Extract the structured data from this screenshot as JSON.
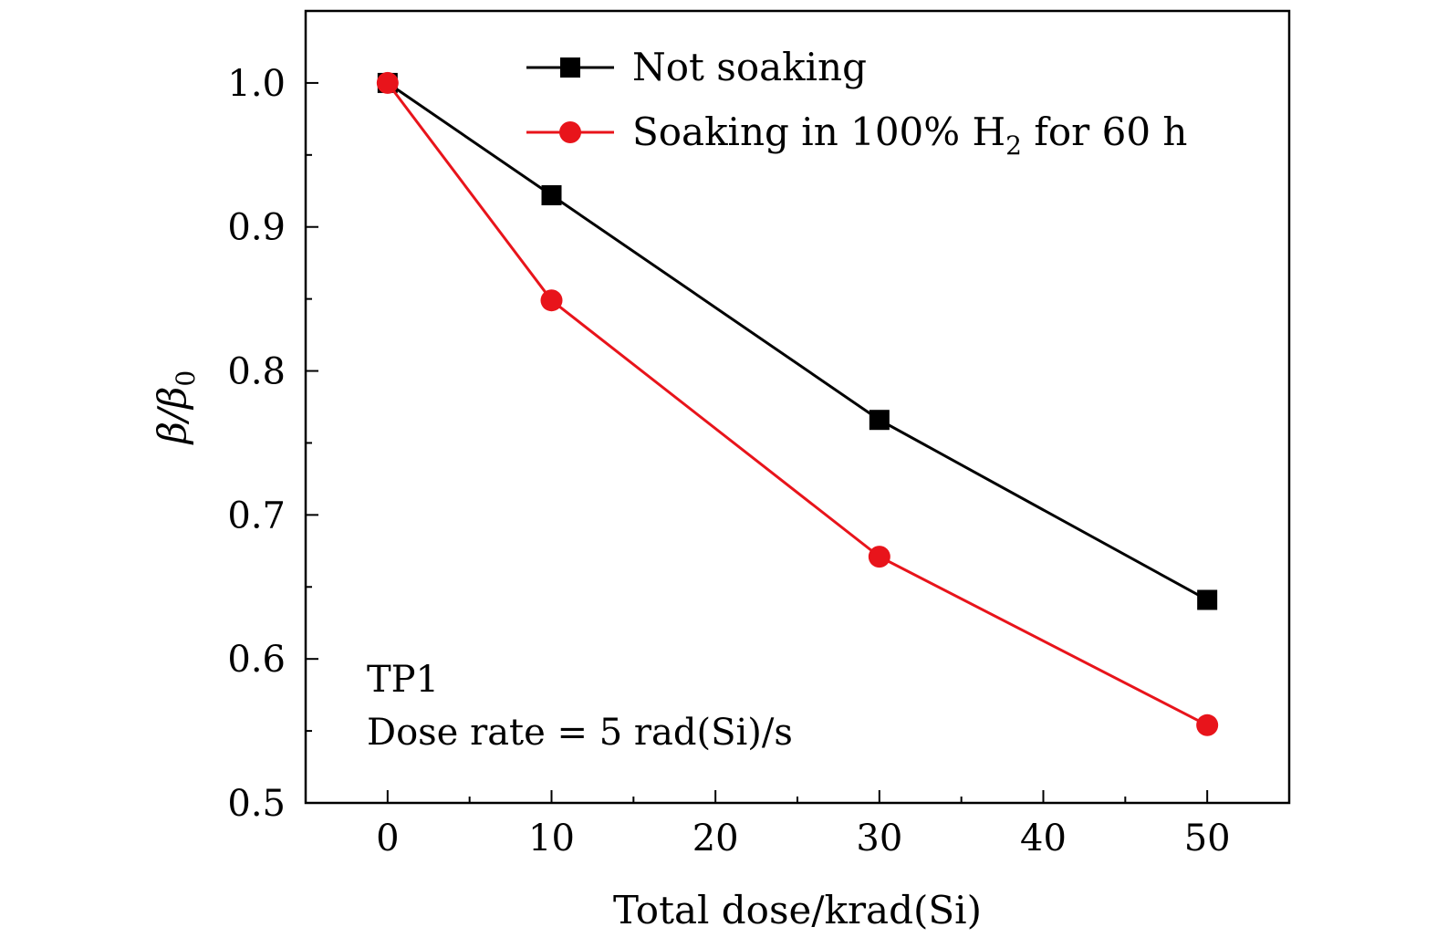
{
  "chart_data": {
    "type": "line",
    "title": "",
    "xlabel": "Total dose/krad(Si)",
    "ylabel": "β/β",
    "ylabel_subscript": "0",
    "xlim": [
      -5,
      55
    ],
    "ylim": [
      0.5,
      1.05
    ],
    "x_ticks": [
      0,
      10,
      20,
      30,
      40,
      50
    ],
    "x_tick_labels": [
      "0",
      "10",
      "20",
      "30",
      "40",
      "50"
    ],
    "y_ticks": [
      0.5,
      0.6,
      0.7,
      0.8,
      0.9,
      1.0
    ],
    "y_tick_labels": [
      "0.5",
      "0.6",
      "0.7",
      "0.8",
      "0.9",
      "1.0"
    ],
    "grid": false,
    "legend_position": "top-right",
    "series": [
      {
        "name": "Not soaking",
        "color": "#000000",
        "marker": "square",
        "x": [
          0,
          10,
          30,
          50
        ],
        "y": [
          1.0,
          0.922,
          0.766,
          0.641
        ]
      },
      {
        "name": "Soaking in 100% H",
        "name_subscript": "2",
        "name_suffix": " for 60 h",
        "color": "#e8141b",
        "marker": "circle",
        "x": [
          0,
          10,
          30,
          50
        ],
        "y": [
          1.0,
          0.849,
          0.671,
          0.554
        ]
      }
    ],
    "annotations": [
      "TP1",
      "Dose rate = 5 rad(Si)/s"
    ]
  }
}
